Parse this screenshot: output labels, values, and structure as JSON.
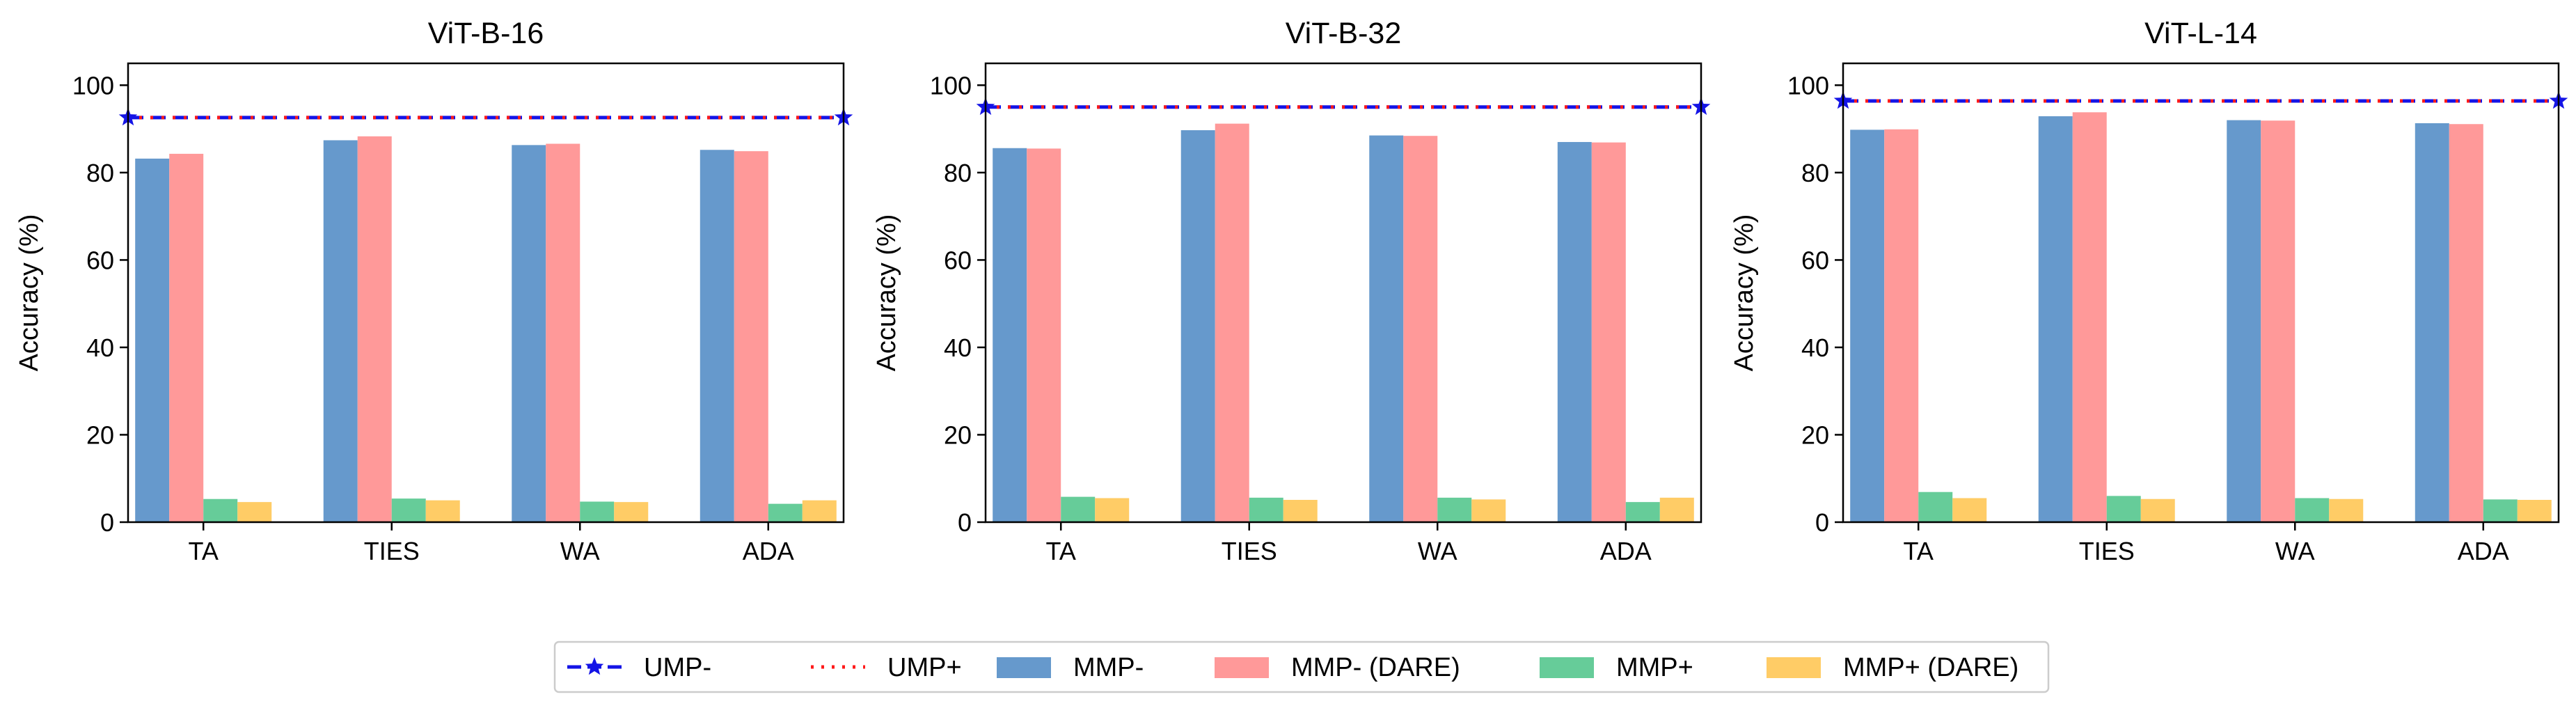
{
  "chart_data": [
    {
      "type": "bar",
      "title": "ViT-B-16",
      "ylabel": "Accuracy (%)",
      "xlabel": "",
      "ylim": [
        0,
        105
      ],
      "yticks": [
        0,
        20,
        40,
        60,
        80,
        100
      ],
      "categories": [
        "TA",
        "TIES",
        "WA",
        "ADA"
      ],
      "series": [
        {
          "name": "MMP-",
          "values": [
            83.2,
            87.4,
            86.3,
            85.2
          ]
        },
        {
          "name": "MMP- (DARE)",
          "values": [
            84.3,
            88.3,
            86.6,
            84.9
          ]
        },
        {
          "name": "MMP+",
          "values": [
            5.3,
            5.4,
            4.7,
            4.2
          ]
        },
        {
          "name": "MMP+ (DARE)",
          "values": [
            4.6,
            5.0,
            4.6,
            5.0
          ]
        }
      ],
      "lines": [
        {
          "name": "UMP-",
          "value": 92.6
        },
        {
          "name": "UMP+",
          "value": 92.6
        }
      ]
    },
    {
      "type": "bar",
      "title": "ViT-B-32",
      "ylabel": "Accuracy (%)",
      "xlabel": "",
      "ylim": [
        0,
        105
      ],
      "yticks": [
        0,
        20,
        40,
        60,
        80,
        100
      ],
      "categories": [
        "TA",
        "TIES",
        "WA",
        "ADA"
      ],
      "series": [
        {
          "name": "MMP-",
          "values": [
            85.6,
            89.7,
            88.5,
            87.0
          ]
        },
        {
          "name": "MMP- (DARE)",
          "values": [
            85.5,
            91.2,
            88.4,
            86.9
          ]
        },
        {
          "name": "MMP+",
          "values": [
            5.8,
            5.6,
            5.6,
            4.6
          ]
        },
        {
          "name": "MMP+ (DARE)",
          "values": [
            5.5,
            5.1,
            5.2,
            5.6
          ]
        }
      ],
      "lines": [
        {
          "name": "UMP-",
          "value": 95.0
        },
        {
          "name": "UMP+",
          "value": 95.0
        }
      ]
    },
    {
      "type": "bar",
      "title": "ViT-L-14",
      "ylabel": "Accuracy (%)",
      "xlabel": "",
      "ylim": [
        0,
        105
      ],
      "yticks": [
        0,
        20,
        40,
        60,
        80,
        100
      ],
      "categories": [
        "TA",
        "TIES",
        "WA",
        "ADA"
      ],
      "series": [
        {
          "name": "MMP-",
          "values": [
            89.8,
            92.9,
            92.0,
            91.3
          ]
        },
        {
          "name": "MMP- (DARE)",
          "values": [
            89.9,
            93.8,
            91.9,
            91.1
          ]
        },
        {
          "name": "MMP+",
          "values": [
            6.9,
            6.0,
            5.5,
            5.2
          ]
        },
        {
          "name": "MMP+ (DARE)",
          "values": [
            5.5,
            5.3,
            5.3,
            5.1
          ]
        }
      ],
      "lines": [
        {
          "name": "UMP-",
          "value": 96.4
        },
        {
          "name": "UMP+",
          "value": 96.4
        }
      ]
    }
  ],
  "legend": {
    "placement": "bottom-center",
    "items": [
      {
        "label": "UMP-",
        "kind": "line-star",
        "color": "#1414e6"
      },
      {
        "label": "UMP+",
        "kind": "line-dotted",
        "color": "#ff1a1a"
      },
      {
        "label": "MMP-",
        "kind": "patch",
        "color": "#6699cc"
      },
      {
        "label": "MMP- (DARE)",
        "kind": "patch",
        "color": "#ff9999"
      },
      {
        "label": "MMP+",
        "kind": "patch",
        "color": "#66cc99"
      },
      {
        "label": "MMP+ (DARE)",
        "kind": "patch",
        "color": "#ffcc66"
      }
    ]
  },
  "colors": {
    "MMP-": "#6699cc",
    "MMP- (DARE)": "#ff9999",
    "MMP+": "#66cc99",
    "MMP+ (DARE)": "#ffcc66",
    "UMP-": "#1414e6",
    "UMP+": "#ff1a1a"
  }
}
